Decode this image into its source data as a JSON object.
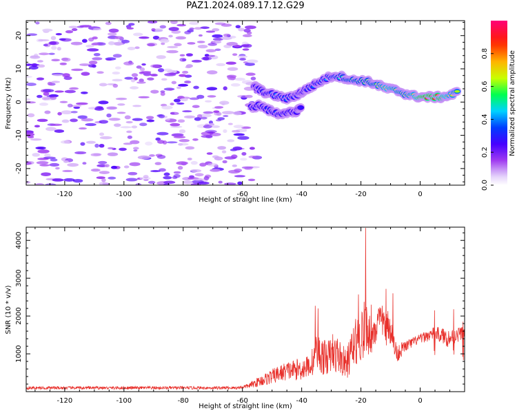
{
  "figure": {
    "title": "PAZ1.2024.089.17.12.G29"
  },
  "colors": {
    "snr_line": "#e8312c",
    "frame": "#000000"
  },
  "chart_data": [
    {
      "type": "heatmap",
      "title": "PAZ1.2024.089.17.12.G29",
      "xlabel": "Height of straight line (km)",
      "ylabel": "Frequency (Hz)",
      "xlim": [
        -133,
        15
      ],
      "ylim": [
        -25,
        24.5
      ],
      "xticks": [
        -120,
        -100,
        -80,
        -60,
        -40,
        -20,
        0
      ],
      "yticks": [
        -20,
        -10,
        0,
        10,
        20
      ],
      "colorbar": {
        "label": "Normalized spectral amplitude",
        "range": [
          0,
          1
        ],
        "ticks": [
          0.0,
          0.2,
          0.4,
          0.6,
          0.8
        ],
        "colormap": "gist_rainbow_r"
      },
      "description_noise": {
        "x_range": [
          -133,
          -55
        ],
        "freq_range": [
          -25,
          24.5
        ],
        "amplitude": [
          0.05,
          0.25
        ]
      },
      "ridge": [
        {
          "x": -56,
          "f": 5.0,
          "a": 0.28
        },
        {
          "x": -54,
          "f": 3.5,
          "a": 0.32
        },
        {
          "x": -51,
          "f": 2.5,
          "a": 0.36
        },
        {
          "x": -48,
          "f": 1.8,
          "a": 0.4
        },
        {
          "x": -45,
          "f": 1.0,
          "a": 0.38
        },
        {
          "x": -42,
          "f": 2.0,
          "a": 0.36
        },
        {
          "x": -40,
          "f": 3.0,
          "a": 0.34
        },
        {
          "x": -38,
          "f": 4.0,
          "a": 0.36
        },
        {
          "x": -35,
          "f": 5.5,
          "a": 0.38
        },
        {
          "x": -32,
          "f": 7.0,
          "a": 0.42
        },
        {
          "x": -29,
          "f": 8.0,
          "a": 0.46
        },
        {
          "x": -26,
          "f": 7.5,
          "a": 0.5
        },
        {
          "x": -23,
          "f": 6.5,
          "a": 0.56
        },
        {
          "x": -20,
          "f": 6.5,
          "a": 0.54
        },
        {
          "x": -17,
          "f": 6.0,
          "a": 0.58
        },
        {
          "x": -14,
          "f": 5.0,
          "a": 0.62
        },
        {
          "x": -11,
          "f": 4.0,
          "a": 0.74
        },
        {
          "x": -8,
          "f": 3.5,
          "a": 0.66
        },
        {
          "x": -5,
          "f": 2.5,
          "a": 0.62
        },
        {
          "x": -2,
          "f": 1.8,
          "a": 0.7
        },
        {
          "x": 1,
          "f": 1.5,
          "a": 0.9
        },
        {
          "x": 4,
          "f": 1.5,
          "a": 0.88
        },
        {
          "x": 7,
          "f": 1.5,
          "a": 0.84
        },
        {
          "x": 10,
          "f": 2.0,
          "a": 0.7
        },
        {
          "x": 13,
          "f": 3.0,
          "a": 0.62
        }
      ],
      "ridge2": [
        {
          "x": -57,
          "f": -1.5,
          "a": 0.3
        },
        {
          "x": -54,
          "f": -1.0,
          "a": 0.32
        },
        {
          "x": -51,
          "f": -2.5,
          "a": 0.34
        },
        {
          "x": -48,
          "f": -3.5,
          "a": 0.36
        },
        {
          "x": -45,
          "f": -3.0,
          "a": 0.32
        },
        {
          "x": -42,
          "f": -3.5,
          "a": 0.3
        },
        {
          "x": -40,
          "f": -1.0,
          "a": 0.28
        }
      ]
    },
    {
      "type": "line",
      "xlabel": "Height of straight line (km)",
      "ylabel": "SNR (10 * v/v)",
      "xlim": [
        -133,
        15
      ],
      "ylim": [
        0,
        4350
      ],
      "xticks": [
        -120,
        -100,
        -80,
        -60,
        -40,
        -20,
        0
      ],
      "yticks": [
        1000,
        2000,
        3000,
        4000
      ],
      "series": [
        {
          "color": "#e8312c",
          "envelope": [
            {
              "x": -133,
              "base": 100,
              "amp": 80
            },
            {
              "x": -62,
              "base": 100,
              "amp": 80
            },
            {
              "x": -58,
              "base": 150,
              "amp": 120
            },
            {
              "x": -55,
              "base": 250,
              "amp": 250
            },
            {
              "x": -50,
              "base": 400,
              "amp": 400
            },
            {
              "x": -45,
              "base": 550,
              "amp": 500
            },
            {
              "x": -40,
              "base": 600,
              "amp": 600
            },
            {
              "x": -37,
              "base": 700,
              "amp": 600
            },
            {
              "x": -35,
              "base": 1000,
              "amp": 1200
            },
            {
              "x": -32,
              "base": 900,
              "amp": 900
            },
            {
              "x": -28,
              "base": 1000,
              "amp": 1000
            },
            {
              "x": -25,
              "base": 700,
              "amp": 800
            },
            {
              "x": -22,
              "base": 1300,
              "amp": 1200
            },
            {
              "x": -19,
              "base": 1600,
              "amp": 1600
            },
            {
              "x": -16,
              "base": 1600,
              "amp": 1000
            },
            {
              "x": -13,
              "base": 1900,
              "amp": 800
            },
            {
              "x": -10,
              "base": 1700,
              "amp": 900
            },
            {
              "x": -8,
              "base": 1000,
              "amp": 500
            },
            {
              "x": -5,
              "base": 1200,
              "amp": 300
            },
            {
              "x": 0,
              "base": 1400,
              "amp": 250
            },
            {
              "x": 5,
              "base": 1550,
              "amp": 350
            },
            {
              "x": 10,
              "base": 1400,
              "amp": 500
            },
            {
              "x": 15,
              "base": 1600,
              "amp": 300
            }
          ],
          "spikes": [
            {
              "x": -35.4,
              "y": 2270
            },
            {
              "x": -34.5,
              "y": 2200
            },
            {
              "x": -29.5,
              "y": 1520
            },
            {
              "x": -22.5,
              "y": 1680
            },
            {
              "x": -20.8,
              "y": 2570
            },
            {
              "x": -18.4,
              "y": 4330
            },
            {
              "x": -16.5,
              "y": 2300
            },
            {
              "x": -11.5,
              "y": 2720
            },
            {
              "x": -9.2,
              "y": 2600
            },
            {
              "x": 4.8,
              "y": 2150
            },
            {
              "x": 11.3,
              "y": 2180
            },
            {
              "x": 14.5,
              "y": 1850
            }
          ]
        }
      ]
    }
  ]
}
